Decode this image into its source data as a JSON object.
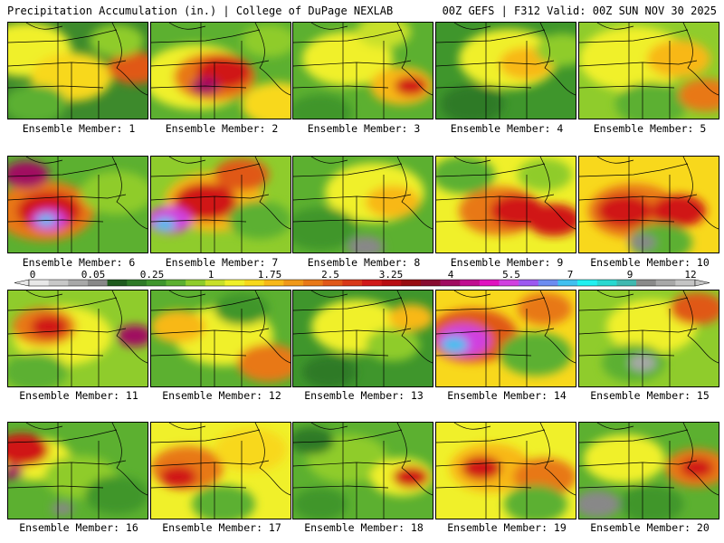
{
  "header": {
    "left": "Precipitation Accumulation (in.) | College of DuPage NEXLAB",
    "right": "00Z GEFS | F312 Valid: 00Z SUN NOV 30 2025"
  },
  "legend": {
    "labels": [
      "0",
      "0.05",
      "0.25",
      "1",
      "1.75",
      "2.5",
      "3.25",
      "4",
      "5.5",
      "7",
      "9",
      "12"
    ],
    "colors": [
      "#e8e8e8",
      "#c8c8c8",
      "#a8a8a8",
      "#888888",
      "#1f5b1e",
      "#2e7a26",
      "#3f962c",
      "#5cb030",
      "#8fcc2c",
      "#c8e02a",
      "#f0f02a",
      "#f8d81c",
      "#f8b818",
      "#f09818",
      "#e87818",
      "#e05818",
      "#d83818",
      "#d01818",
      "#b80c12",
      "#980c10",
      "#880c30",
      "#a00c60",
      "#c00c90",
      "#e010c0",
      "#d040e0",
      "#9c58f0",
      "#6c8cf0",
      "#40c0f0",
      "#20f0f0",
      "#28d8d0",
      "#40b8b0",
      "#8a8a8a",
      "#a8a8a8",
      "#c4c4c4"
    ]
  },
  "members": [
    {
      "label": "Ensemble Member: 1",
      "base": "#3d8a2c",
      "blobs": [
        [
          20,
          30,
          50,
          "#f0f02a"
        ],
        [
          70,
          60,
          45,
          "#f8d81c"
        ],
        [
          140,
          50,
          30,
          "#e05818"
        ],
        [
          120,
          20,
          30,
          "#8fcc2c"
        ],
        [
          30,
          90,
          35,
          "#5cb030"
        ]
      ]
    },
    {
      "label": "Ensemble Member: 2",
      "base": "#5cb030",
      "blobs": [
        [
          50,
          60,
          60,
          "#f0f02a"
        ],
        [
          70,
          60,
          45,
          "#e87818"
        ],
        [
          80,
          55,
          30,
          "#d01818"
        ],
        [
          60,
          70,
          16,
          "#a00c60"
        ],
        [
          130,
          20,
          30,
          "#8fcc2c"
        ],
        [
          140,
          90,
          40,
          "#f8d81c"
        ]
      ]
    },
    {
      "label": "Ensemble Member: 3",
      "base": "#5cb030",
      "blobs": [
        [
          60,
          40,
          50,
          "#f0f02a"
        ],
        [
          120,
          70,
          35,
          "#f8b818"
        ],
        [
          130,
          70,
          18,
          "#d01818"
        ],
        [
          30,
          100,
          35,
          "#3f962c"
        ],
        [
          100,
          10,
          30,
          "#c8e02a"
        ]
      ]
    },
    {
      "label": "Ensemble Member: 4",
      "base": "#3f962c",
      "blobs": [
        [
          80,
          40,
          55,
          "#f0f02a"
        ],
        [
          100,
          45,
          30,
          "#f8b818"
        ],
        [
          40,
          90,
          35,
          "#2e7a26"
        ],
        [
          140,
          30,
          30,
          "#8fcc2c"
        ]
      ]
    },
    {
      "label": "Ensemble Member: 5",
      "base": "#8fcc2c",
      "blobs": [
        [
          60,
          40,
          60,
          "#f0f02a"
        ],
        [
          110,
          40,
          35,
          "#f8b818"
        ],
        [
          80,
          90,
          40,
          "#5cb030"
        ],
        [
          140,
          80,
          30,
          "#e87818"
        ]
      ]
    },
    {
      "label": "Ensemble Member: 6",
      "base": "#5cb030",
      "blobs": [
        [
          40,
          60,
          55,
          "#e87818"
        ],
        [
          45,
          60,
          35,
          "#d01818"
        ],
        [
          45,
          70,
          20,
          "#d040e0"
        ],
        [
          42,
          70,
          10,
          "#40c0f0"
        ],
        [
          120,
          40,
          40,
          "#8fcc2c"
        ],
        [
          20,
          20,
          25,
          "#a00c60"
        ]
      ]
    },
    {
      "label": "Ensemble Member: 7",
      "base": "#8fcc2c",
      "blobs": [
        [
          70,
          50,
          55,
          "#f8b818"
        ],
        [
          60,
          50,
          35,
          "#d01818"
        ],
        [
          20,
          70,
          25,
          "#d040e0"
        ],
        [
          15,
          75,
          12,
          "#40c0f0"
        ],
        [
          120,
          70,
          35,
          "#5cb030"
        ],
        [
          100,
          20,
          30,
          "#e05818"
        ]
      ]
    },
    {
      "label": "Ensemble Member: 8",
      "base": "#5cb030",
      "blobs": [
        [
          90,
          40,
          55,
          "#f0f02a"
        ],
        [
          110,
          50,
          30,
          "#f8b818"
        ],
        [
          30,
          80,
          40,
          "#3f962c"
        ],
        [
          80,
          100,
          20,
          "#888888"
        ]
      ]
    },
    {
      "label": "Ensemble Member: 9",
      "base": "#f0f02a",
      "blobs": [
        [
          70,
          60,
          45,
          "#e87818"
        ],
        [
          90,
          60,
          30,
          "#d01818"
        ],
        [
          130,
          70,
          30,
          "#d01818"
        ],
        [
          30,
          20,
          35,
          "#5cb030"
        ],
        [
          120,
          20,
          30,
          "#8fcc2c"
        ]
      ]
    },
    {
      "label": "Ensemble Member: 10",
      "base": "#f8d81c",
      "blobs": [
        [
          60,
          60,
          50,
          "#e87818"
        ],
        [
          50,
          60,
          30,
          "#d01818"
        ],
        [
          110,
          60,
          30,
          "#d01818"
        ],
        [
          90,
          95,
          35,
          "#5cb030"
        ],
        [
          70,
          95,
          15,
          "#888888"
        ]
      ]
    },
    {
      "label": "Ensemble Member: 11",
      "base": "#8fcc2c",
      "blobs": [
        [
          60,
          50,
          55,
          "#f0f02a"
        ],
        [
          40,
          40,
          35,
          "#e87818"
        ],
        [
          45,
          40,
          20,
          "#d01818"
        ],
        [
          140,
          50,
          20,
          "#a00c60"
        ],
        [
          30,
          90,
          35,
          "#5cb030"
        ]
      ]
    },
    {
      "label": "Ensemble Member: 12",
      "base": "#5cb030",
      "blobs": [
        [
          80,
          50,
          55,
          "#f0f02a"
        ],
        [
          30,
          40,
          30,
          "#f8b818"
        ],
        [
          130,
          80,
          35,
          "#e87818"
        ],
        [
          100,
          20,
          30,
          "#3f962c"
        ]
      ]
    },
    {
      "label": "Ensemble Member: 13",
      "base": "#3f962c",
      "blobs": [
        [
          70,
          40,
          50,
          "#f0f02a"
        ],
        [
          110,
          60,
          30,
          "#8fcc2c"
        ],
        [
          130,
          30,
          25,
          "#f8b818"
        ],
        [
          40,
          90,
          30,
          "#2e7a26"
        ]
      ]
    },
    {
      "label": "Ensemble Member: 14",
      "base": "#f8d81c",
      "blobs": [
        [
          40,
          50,
          50,
          "#e05818"
        ],
        [
          30,
          55,
          30,
          "#d040e0"
        ],
        [
          20,
          60,
          15,
          "#40c0f0"
        ],
        [
          110,
          70,
          40,
          "#5cb030"
        ],
        [
          120,
          20,
          30,
          "#e87818"
        ]
      ]
    },
    {
      "label": "Ensemble Member: 15",
      "base": "#8fcc2c",
      "blobs": [
        [
          80,
          40,
          50,
          "#f0f02a"
        ],
        [
          60,
          80,
          35,
          "#5cb030"
        ],
        [
          70,
          80,
          15,
          "#a8a8a8"
        ],
        [
          130,
          20,
          30,
          "#e05818"
        ]
      ]
    },
    {
      "label": "Ensemble Member: 16",
      "base": "#5cb030",
      "blobs": [
        [
          30,
          40,
          40,
          "#f0f02a"
        ],
        [
          15,
          30,
          30,
          "#d01818"
        ],
        [
          5,
          55,
          12,
          "#a00c60"
        ],
        [
          80,
          60,
          40,
          "#8fcc2c"
        ],
        [
          60,
          95,
          12,
          "#888888"
        ],
        [
          120,
          80,
          35,
          "#3f962c"
        ]
      ]
    },
    {
      "label": "Ensemble Member: 17",
      "base": "#f0f02a",
      "blobs": [
        [
          40,
          50,
          40,
          "#e87818"
        ],
        [
          30,
          60,
          20,
          "#d01818"
        ],
        [
          110,
          30,
          40,
          "#f8d81c"
        ],
        [
          80,
          90,
          35,
          "#5cb030"
        ]
      ]
    },
    {
      "label": "Ensemble Member: 18",
      "base": "#5cb030",
      "blobs": [
        [
          60,
          40,
          45,
          "#8fcc2c"
        ],
        [
          120,
          60,
          35,
          "#f0f02a"
        ],
        [
          130,
          60,
          20,
          "#d01818"
        ],
        [
          30,
          90,
          30,
          "#3f962c"
        ],
        [
          20,
          20,
          25,
          "#2e7a26"
        ]
      ]
    },
    {
      "label": "Ensemble Member: 19",
      "base": "#f0f02a",
      "blobs": [
        [
          60,
          50,
          45,
          "#f8b818"
        ],
        [
          50,
          50,
          22,
          "#d01818"
        ],
        [
          120,
          60,
          35,
          "#e87818"
        ],
        [
          110,
          90,
          35,
          "#5cb030"
        ]
      ]
    },
    {
      "label": "Ensemble Member: 20",
      "base": "#5cb030",
      "blobs": [
        [
          50,
          40,
          45,
          "#f0f02a"
        ],
        [
          130,
          50,
          35,
          "#e87818"
        ],
        [
          130,
          50,
          18,
          "#d01818"
        ],
        [
          80,
          90,
          35,
          "#3f962c"
        ],
        [
          20,
          90,
          25,
          "#888888"
        ]
      ]
    }
  ]
}
